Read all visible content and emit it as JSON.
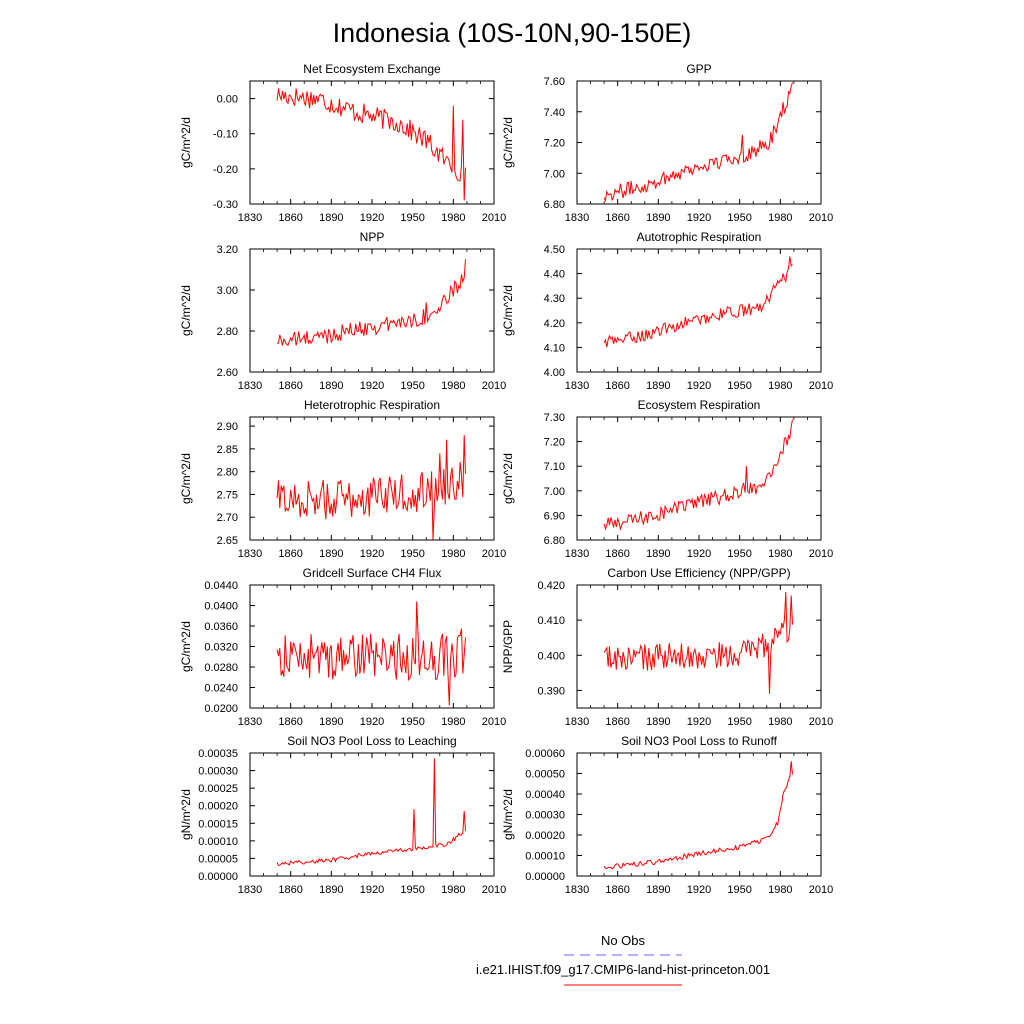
{
  "figure": {
    "title": "Indonesia (10S-10N,90-150E)",
    "series_color": "#ff0000",
    "obs_color": "#6666ff"
  },
  "legend": {
    "items": [
      {
        "label": "No Obs",
        "style": "dashed",
        "color": "#6666ff"
      },
      {
        "label": "i.e21.IHIST.f09_g17.CMIP6-land-hist-princeton.001",
        "style": "solid",
        "color": "#ff0000"
      }
    ]
  },
  "chart_data": [
    {
      "type": "line",
      "title": "Net Ecosystem Exchange",
      "ylabel": "gC/m^2/d",
      "xlabel": "",
      "xlim": [
        1830,
        2010
      ],
      "ylim": [
        -0.3,
        0.05
      ],
      "xticks": [
        1830,
        1860,
        1890,
        1920,
        1950,
        1980,
        2010
      ],
      "yticks": [
        "0.00",
        "-0.10",
        "-0.20",
        "-0.30"
      ],
      "ytick_values": [
        0,
        -0.1,
        -0.2,
        -0.3
      ],
      "x_range": [
        1850,
        1989
      ],
      "anchors": [
        [
          1850,
          0.01
        ],
        [
          1880,
          0.0
        ],
        [
          1910,
          -0.04
        ],
        [
          1940,
          -0.07
        ],
        [
          1960,
          -0.12
        ],
        [
          1975,
          -0.18
        ],
        [
          1989,
          -0.22
        ]
      ],
      "noise": 0.03,
      "spikes": [
        [
          1980,
          -0.02
        ],
        [
          1987,
          -0.06
        ],
        [
          1988,
          -0.29
        ]
      ]
    },
    {
      "type": "line",
      "title": "GPP",
      "ylabel": "gC/m^2/d",
      "xlabel": "",
      "xlim": [
        1830,
        2010
      ],
      "ylim": [
        6.8,
        7.6
      ],
      "xticks": [
        1830,
        1860,
        1890,
        1920,
        1950,
        1980,
        2010
      ],
      "yticks": [
        "6.80",
        "7.00",
        "7.20",
        "7.40",
        "7.60"
      ],
      "ytick_values": [
        6.8,
        7.0,
        7.2,
        7.4,
        7.6
      ],
      "x_range": [
        1850,
        1989
      ],
      "anchors": [
        [
          1850,
          6.86
        ],
        [
          1880,
          6.92
        ],
        [
          1910,
          7.02
        ],
        [
          1940,
          7.08
        ],
        [
          1960,
          7.14
        ],
        [
          1972,
          7.2
        ],
        [
          1980,
          7.38
        ],
        [
          1989,
          7.55
        ]
      ],
      "noise": 0.05,
      "spikes": [
        [
          1952,
          7.25
        ],
        [
          1989,
          7.59
        ]
      ]
    },
    {
      "type": "line",
      "title": "NPP",
      "ylabel": "gC/m^2/d",
      "xlabel": "",
      "xlim": [
        1830,
        2010
      ],
      "ylim": [
        2.6,
        3.2
      ],
      "xticks": [
        1830,
        1860,
        1890,
        1920,
        1950,
        1980,
        2010
      ],
      "yticks": [
        "2.60",
        "2.80",
        "3.00",
        "3.20"
      ],
      "ytick_values": [
        2.6,
        2.8,
        3.0,
        3.2
      ],
      "x_range": [
        1850,
        1989
      ],
      "anchors": [
        [
          1850,
          2.75
        ],
        [
          1880,
          2.77
        ],
        [
          1910,
          2.81
        ],
        [
          1940,
          2.84
        ],
        [
          1965,
          2.88
        ],
        [
          1975,
          2.95
        ],
        [
          1989,
          3.08
        ]
      ],
      "noise": 0.04,
      "spikes": [
        [
          1960,
          2.94
        ],
        [
          1989,
          3.15
        ]
      ]
    },
    {
      "type": "line",
      "title": "Autotrophic Respiration",
      "ylabel": "gC/m^2/d",
      "xlabel": "",
      "xlim": [
        1830,
        2010
      ],
      "ylim": [
        4.0,
        4.5
      ],
      "xticks": [
        1830,
        1860,
        1890,
        1920,
        1950,
        1980,
        2010
      ],
      "yticks": [
        "4.00",
        "4.10",
        "4.20",
        "4.30",
        "4.40",
        "4.50"
      ],
      "ytick_values": [
        4.0,
        4.1,
        4.2,
        4.3,
        4.4,
        4.5
      ],
      "x_range": [
        1850,
        1989
      ],
      "anchors": [
        [
          1850,
          4.12
        ],
        [
          1880,
          4.15
        ],
        [
          1910,
          4.2
        ],
        [
          1940,
          4.24
        ],
        [
          1965,
          4.26
        ],
        [
          1975,
          4.33
        ],
        [
          1989,
          4.42
        ]
      ],
      "noise": 0.025,
      "spikes": [
        [
          1987,
          4.47
        ]
      ]
    },
    {
      "type": "line",
      "title": "Heterotrophic Respiration",
      "ylabel": "gC/m^2/d",
      "xlabel": "",
      "xlim": [
        1830,
        2010
      ],
      "ylim": [
        2.65,
        2.92
      ],
      "xticks": [
        1830,
        1860,
        1890,
        1920,
        1950,
        1980,
        2010
      ],
      "yticks": [
        "2.65",
        "2.70",
        "2.75",
        "2.80",
        "2.85",
        "2.90"
      ],
      "ytick_values": [
        2.65,
        2.7,
        2.75,
        2.8,
        2.85,
        2.9
      ],
      "x_range": [
        1850,
        1989
      ],
      "anchors": [
        [
          1850,
          2.74
        ],
        [
          1900,
          2.74
        ],
        [
          1940,
          2.75
        ],
        [
          1960,
          2.76
        ],
        [
          1989,
          2.78
        ]
      ],
      "noise": 0.045,
      "spikes": [
        [
          1965,
          2.65
        ],
        [
          1970,
          2.84
        ],
        [
          1975,
          2.87
        ],
        [
          1988,
          2.88
        ]
      ]
    },
    {
      "type": "line",
      "title": "Ecosystem Respiration",
      "ylabel": "gC/m^2/d",
      "xlabel": "",
      "xlim": [
        1830,
        2010
      ],
      "ylim": [
        6.8,
        7.3
      ],
      "xticks": [
        1830,
        1860,
        1890,
        1920,
        1950,
        1980,
        2010
      ],
      "yticks": [
        "6.80",
        "6.90",
        "7.00",
        "7.10",
        "7.20",
        "7.30"
      ],
      "ytick_values": [
        6.8,
        6.9,
        7.0,
        7.1,
        7.2,
        7.3
      ],
      "x_range": [
        1850,
        1989
      ],
      "anchors": [
        [
          1850,
          6.86
        ],
        [
          1880,
          6.89
        ],
        [
          1910,
          6.94
        ],
        [
          1940,
          6.98
        ],
        [
          1965,
          7.02
        ],
        [
          1975,
          7.1
        ],
        [
          1989,
          7.25
        ]
      ],
      "noise": 0.03,
      "spikes": [
        [
          1955,
          7.1
        ],
        [
          1989,
          7.29
        ]
      ]
    },
    {
      "type": "line",
      "title": "Gridcell Surface CH4 Flux",
      "ylabel": "gC/m^2/d",
      "xlabel": "",
      "xlim": [
        1830,
        2010
      ],
      "ylim": [
        0.02,
        0.044
      ],
      "xticks": [
        1830,
        1860,
        1890,
        1920,
        1950,
        1980,
        2010
      ],
      "yticks": [
        "0.0200",
        "0.0240",
        "0.0280",
        "0.0320",
        "0.0360",
        "0.0400",
        "0.0440"
      ],
      "ytick_values": [
        0.02,
        0.024,
        0.028,
        0.032,
        0.036,
        0.04,
        0.044
      ],
      "x_range": [
        1850,
        1989
      ],
      "anchors": [
        [
          1850,
          0.03
        ],
        [
          1989,
          0.03
        ]
      ],
      "noise": 0.0045,
      "spikes": [
        [
          1953,
          0.0408
        ],
        [
          1977,
          0.0205
        ],
        [
          1986,
          0.0355
        ]
      ]
    },
    {
      "type": "line",
      "title": "Carbon Use Efficiency (NPP/GPP)",
      "ylabel": "NPP/GPP",
      "xlabel": "",
      "xlim": [
        1830,
        2010
      ],
      "ylim": [
        0.385,
        0.42
      ],
      "xticks": [
        1830,
        1860,
        1890,
        1920,
        1950,
        1980,
        2010
      ],
      "yticks": [
        "0.390",
        "0.400",
        "0.410",
        "0.420"
      ],
      "ytick_values": [
        0.39,
        0.4,
        0.41,
        0.42
      ],
      "x_range": [
        1850,
        1989
      ],
      "anchors": [
        [
          1850,
          0.399
        ],
        [
          1950,
          0.4
        ],
        [
          1970,
          0.403
        ],
        [
          1989,
          0.408
        ]
      ],
      "noise": 0.004,
      "spikes": [
        [
          1972,
          0.389
        ],
        [
          1984,
          0.418
        ],
        [
          1988,
          0.417
        ]
      ]
    },
    {
      "type": "line",
      "title": "Soil NO3 Pool Loss to Leaching",
      "ylabel": "gN/m^2/d",
      "xlabel": "",
      "xlim": [
        1830,
        2010
      ],
      "ylim": [
        0.0,
        0.00035
      ],
      "xticks": [
        1830,
        1860,
        1890,
        1920,
        1950,
        1980,
        2010
      ],
      "yticks": [
        "0.00000",
        "0.00005",
        "0.00010",
        "0.00015",
        "0.00020",
        "0.00025",
        "0.00030",
        "0.00035"
      ],
      "ytick_values": [
        0,
        5e-05,
        0.0001,
        0.00015,
        0.0002,
        0.00025,
        0.0003,
        0.00035
      ],
      "x_range": [
        1850,
        1989
      ],
      "anchors": [
        [
          1850,
          3.5e-05
        ],
        [
          1890,
          4.5e-05
        ],
        [
          1920,
          6.5e-05
        ],
        [
          1945,
          7.5e-05
        ],
        [
          1960,
          8e-05
        ],
        [
          1975,
          9e-05
        ],
        [
          1989,
          0.00013
        ]
      ],
      "noise": 6e-06,
      "spikes": [
        [
          1951,
          0.00019
        ],
        [
          1966,
          0.000335
        ],
        [
          1988,
          0.000185
        ]
      ]
    },
    {
      "type": "line",
      "title": "Soil NO3 Pool Loss to Runoff",
      "ylabel": "gN/m^2/d",
      "xlabel": "",
      "xlim": [
        1830,
        2010
      ],
      "ylim": [
        0.0,
        0.0006
      ],
      "xticks": [
        1830,
        1860,
        1890,
        1920,
        1950,
        1980,
        2010
      ],
      "yticks": [
        "0.00000",
        "0.00010",
        "0.00020",
        "0.00030",
        "0.00040",
        "0.00050",
        "0.00060"
      ],
      "ytick_values": [
        0,
        0.0001,
        0.0002,
        0.0003,
        0.0004,
        0.0005,
        0.0006
      ],
      "x_range": [
        1850,
        1989
      ],
      "anchors": [
        [
          1850,
          4e-05
        ],
        [
          1890,
          7e-05
        ],
        [
          1920,
          0.00011
        ],
        [
          1950,
          0.00014
        ],
        [
          1970,
          0.00018
        ],
        [
          1978,
          0.00026
        ],
        [
          1983,
          0.00042
        ],
        [
          1989,
          0.0005
        ]
      ],
      "noise": 1.2e-05,
      "spikes": [
        [
          1988,
          0.00056
        ]
      ]
    }
  ]
}
